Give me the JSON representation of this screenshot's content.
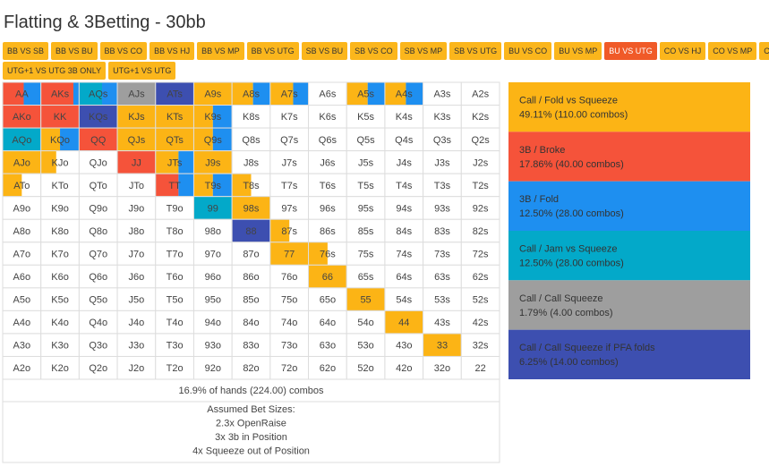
{
  "header": {
    "title": "Flatting & 3Betting - 30bb"
  },
  "tabs": {
    "row1": [
      "BB VS SB",
      "BB VS BU",
      "BB VS CO",
      "BB VS HJ",
      "BB VS MP",
      "BB VS UTG",
      "SB VS BU",
      "SB VS CO",
      "SB VS MP",
      "SB VS UTG",
      "BU VS CO",
      "BU VS MP",
      "BU VS UTG",
      "CO VS HJ",
      "CO VS MP",
      "CO VS UTG"
    ],
    "row2": [
      "UTG+1 VS UTG 3B ONLY",
      "UTG+1 VS UTG"
    ],
    "active": "BU VS UTG"
  },
  "grid": {
    "rows": [
      [
        "AA",
        "AKs",
        "AQs",
        "AJs",
        "ATs",
        "A9s",
        "A8s",
        "A7s",
        "A6s",
        "A5s",
        "A4s",
        "A3s",
        "A2s"
      ],
      [
        "AKo",
        "KK",
        "KQs",
        "KJs",
        "KTs",
        "K9s",
        "K8s",
        "K7s",
        "K6s",
        "K5s",
        "K4s",
        "K3s",
        "K2s"
      ],
      [
        "AQo",
        "KQo",
        "QQ",
        "QJs",
        "QTs",
        "Q9s",
        "Q8s",
        "Q7s",
        "Q6s",
        "Q5s",
        "Q4s",
        "Q3s",
        "Q2s"
      ],
      [
        "AJo",
        "KJo",
        "QJo",
        "JJ",
        "JTs",
        "J9s",
        "J8s",
        "J7s",
        "J6s",
        "J5s",
        "J4s",
        "J3s",
        "J2s"
      ],
      [
        "ATo",
        "KTo",
        "QTo",
        "JTo",
        "TT",
        "T9s",
        "T8s",
        "T7s",
        "T6s",
        "T5s",
        "T4s",
        "T3s",
        "T2s"
      ],
      [
        "A9o",
        "K9o",
        "Q9o",
        "J9o",
        "T9o",
        "99",
        "98s",
        "97s",
        "96s",
        "95s",
        "94s",
        "93s",
        "92s"
      ],
      [
        "A8o",
        "K8o",
        "Q8o",
        "J8o",
        "T8o",
        "98o",
        "88",
        "87s",
        "86s",
        "85s",
        "84s",
        "83s",
        "82s"
      ],
      [
        "A7o",
        "K7o",
        "Q7o",
        "J7o",
        "T7o",
        "97o",
        "87o",
        "77",
        "76s",
        "75s",
        "74s",
        "73s",
        "72s"
      ],
      [
        "A6o",
        "K6o",
        "Q6o",
        "J6o",
        "T6o",
        "96o",
        "86o",
        "76o",
        "66",
        "65s",
        "64s",
        "63s",
        "62s"
      ],
      [
        "A5o",
        "K5o",
        "Q5o",
        "J5o",
        "T5o",
        "95o",
        "85o",
        "75o",
        "65o",
        "55",
        "54s",
        "53s",
        "52s"
      ],
      [
        "A4o",
        "K4o",
        "Q4o",
        "J4o",
        "T4o",
        "94o",
        "84o",
        "74o",
        "64o",
        "54o",
        "44",
        "43s",
        "42s"
      ],
      [
        "A3o",
        "K3o",
        "Q3o",
        "J3o",
        "T3o",
        "93o",
        "83o",
        "73o",
        "63o",
        "53o",
        "43o",
        "33",
        "32s"
      ],
      [
        "A2o",
        "K2o",
        "Q2o",
        "J2o",
        "T2o",
        "92o",
        "82o",
        "72o",
        "62o",
        "52o",
        "42o",
        "32o",
        "22"
      ]
    ],
    "fills": {
      "AA": [
        [
          1,
          0.55
        ],
        [
          2,
          0.45
        ]
      ],
      "AKs": [
        [
          1,
          0.85
        ],
        [
          2,
          0.15
        ]
      ],
      "AQs": [
        [
          3,
          0.6
        ],
        [
          2,
          0.4
        ]
      ],
      "AJs": [
        [
          4,
          1
        ]
      ],
      "ATs": [
        [
          5,
          1
        ]
      ],
      "A9s": [
        [
          0,
          1
        ]
      ],
      "A8s": [
        [
          0,
          0.55
        ],
        [
          2,
          0.45
        ]
      ],
      "A7s": [
        [
          0,
          0.6
        ],
        [
          2,
          0.4
        ]
      ],
      "A5s": [
        [
          0,
          0.55
        ],
        [
          2,
          0.45
        ]
      ],
      "A4s": [
        [
          0,
          0.55
        ],
        [
          2,
          0.45
        ]
      ],
      "AKo": [
        [
          1,
          1
        ]
      ],
      "KK": [
        [
          1,
          1
        ]
      ],
      "KQs": [
        [
          5,
          1
        ]
      ],
      "KJs": [
        [
          0,
          1
        ]
      ],
      "KTs": [
        [
          0,
          1
        ]
      ],
      "K9s": [
        [
          0,
          0.5
        ],
        [
          2,
          0.5
        ]
      ],
      "AQo": [
        [
          3,
          1
        ]
      ],
      "KQo": [
        [
          0,
          0.5
        ],
        [
          2,
          0.5
        ]
      ],
      "QQ": [
        [
          1,
          1
        ]
      ],
      "QJs": [
        [
          0,
          1
        ]
      ],
      "QTs": [
        [
          0,
          1
        ]
      ],
      "Q9s": [
        [
          0,
          0.5
        ],
        [
          2,
          0.5
        ]
      ],
      "AJo": [
        [
          0,
          1
        ]
      ],
      "KJo": [
        [
          0,
          0.4
        ]
      ],
      "JJ": [
        [
          1,
          1
        ]
      ],
      "JTs": [
        [
          0,
          0.6
        ],
        [
          2,
          0.4
        ]
      ],
      "J9s": [
        [
          0,
          1
        ]
      ],
      "ATo": [
        [
          0,
          0.5
        ]
      ],
      "TT": [
        [
          1,
          0.6
        ],
        [
          2,
          0.4
        ]
      ],
      "T9s": [
        [
          0,
          0.5
        ],
        [
          2,
          0.5
        ]
      ],
      "T8s": [
        [
          0,
          0.5
        ]
      ],
      "99": [
        [
          3,
          1
        ]
      ],
      "98s": [
        [
          0,
          1
        ]
      ],
      "88": [
        [
          5,
          1
        ]
      ],
      "87s": [
        [
          0,
          0.5
        ]
      ],
      "77": [
        [
          0,
          1
        ]
      ],
      "76s": [
        [
          0,
          0.5
        ]
      ],
      "66": [
        [
          0,
          1
        ]
      ],
      "55": [
        [
          0,
          1
        ]
      ],
      "44": [
        [
          0,
          1
        ]
      ],
      "33": [
        [
          0,
          1
        ]
      ]
    },
    "summary": "16.9% of hands (224.00) combos",
    "notes": [
      "Assumed Bet Sizes:",
      "2.3x OpenRaise",
      "3x 3b in Position",
      "4x Squeeze out of Position"
    ]
  },
  "legend": [
    {
      "name": "Call / Fold vs Squeeze",
      "detail": "49.11% (110.00 combos)",
      "color": "#fcb415"
    },
    {
      "name": "3B / Broke",
      "detail": "17.86% (40.00 combos)",
      "color": "#f5533a"
    },
    {
      "name": "3B / Fold",
      "detail": "12.50% (28.00 combos)",
      "color": "#1e8ff0"
    },
    {
      "name": "Call / Jam vs Squeeze",
      "detail": "12.50% (28.00 combos)",
      "color": "#03a9c9"
    },
    {
      "name": "Call / Call Squeeze",
      "detail": "1.79% (4.00 combos)",
      "color": "#9e9e9e"
    },
    {
      "name": "Call / Call Squeeze if PFA folds",
      "detail": "6.25% (14.00 combos)",
      "color": "#3d4fb0"
    }
  ]
}
